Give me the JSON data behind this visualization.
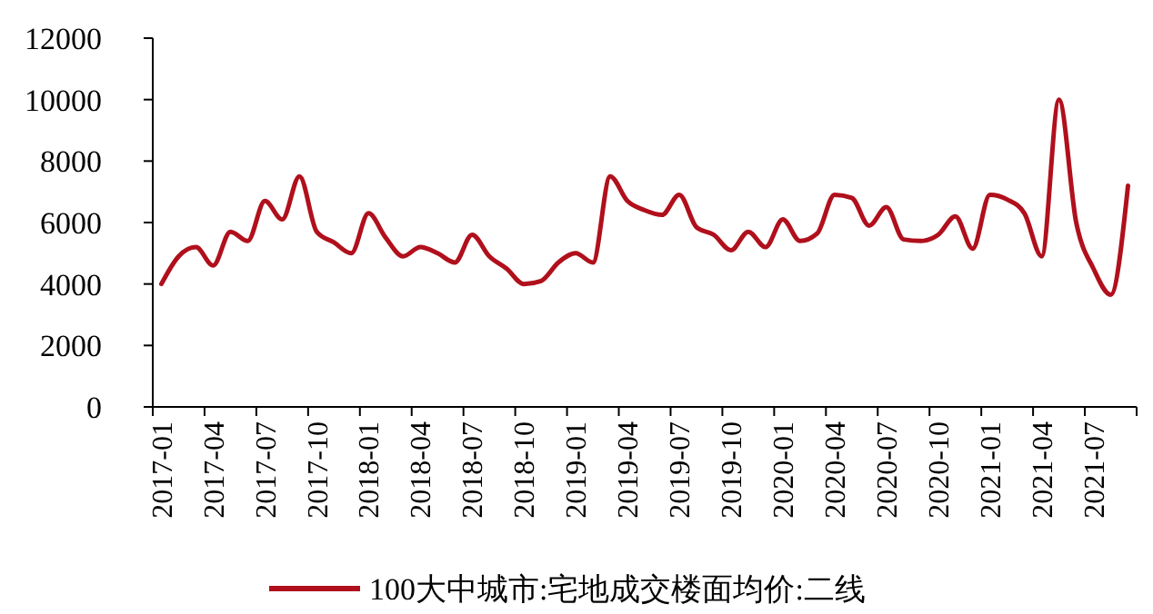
{
  "chart_data": {
    "type": "line",
    "categories": [
      "2017-01",
      null,
      null,
      "2017-04",
      null,
      null,
      "2017-07",
      null,
      null,
      "2017-10",
      null,
      null,
      "2018-01",
      null,
      null,
      "2018-04",
      null,
      null,
      "2018-07",
      null,
      null,
      "2018-10",
      null,
      null,
      "2019-01",
      null,
      null,
      "2019-04",
      null,
      null,
      "2019-07",
      null,
      null,
      "2019-10",
      null,
      null,
      "2020-01",
      null,
      null,
      "2020-04",
      null,
      null,
      "2020-07",
      null,
      null,
      "2020-10",
      null,
      null,
      "2021-01",
      null,
      null,
      "2021-04",
      null,
      null,
      "2021-07",
      null,
      null
    ],
    "series": [
      {
        "name": "100大中城市:宅地成交楼面均价:二线",
        "color": "#b0101c",
        "values": [
          4000,
          4900,
          5200,
          4600,
          5700,
          5400,
          6700,
          6100,
          7500,
          5700,
          5350,
          5000,
          6300,
          5500,
          4900,
          5200,
          5000,
          4700,
          5600,
          4900,
          4500,
          4000,
          4100,
          4700,
          5000,
          4700,
          7500,
          6700,
          6400,
          6250,
          6900,
          5850,
          5600,
          5100,
          5700,
          5200,
          6100,
          5400,
          5650,
          6900,
          6800,
          5900,
          6500,
          5450,
          5400,
          5600,
          6200,
          5150,
          6900,
          6750,
          6300,
          4900,
          10000,
          6000,
          4500,
          3650,
          7200
        ]
      }
    ],
    "ylim": [
      0,
      12000
    ],
    "yticks": [
      0,
      2000,
      4000,
      6000,
      8000,
      10000,
      12000
    ],
    "grid": false,
    "legend": "bottom",
    "marker": "none",
    "line_style": "solid"
  }
}
